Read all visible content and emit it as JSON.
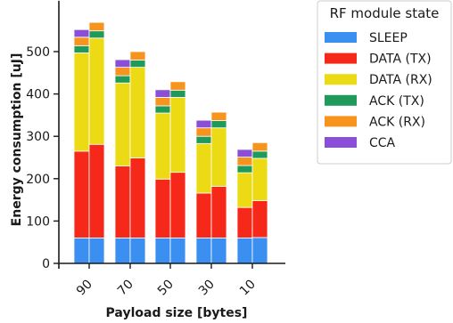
{
  "chart_data": {
    "type": "bar",
    "stacked": true,
    "grouping": "pairs of adjacent stacked bars per category",
    "xlabel": "Payload size [bytes]",
    "ylabel": "Energy consumption [uJ]",
    "ylim": [
      0,
      620
    ],
    "yticks": [
      0,
      100,
      200,
      300,
      400,
      500
    ],
    "categories": [
      "90",
      "70",
      "50",
      "30",
      "10"
    ],
    "legend": {
      "title": "RF module state",
      "placement": "upper-right, outside plot",
      "entries": [
        "SLEEP",
        "DATA (TX)",
        "DATA (RX)",
        "ACK (TX)",
        "ACK (RX)",
        "CCA"
      ]
    },
    "colors": {
      "SLEEP": "#3b8ff0",
      "DATA (TX)": "#f5281a",
      "DATA (RX)": "#ecdb14",
      "ACK (TX)": "#1f9a5a",
      "ACK (RX)": "#f7941d",
      "CCA": "#8a4fd6"
    },
    "series": [
      {
        "name": "SLEEP",
        "values": [
          [
            60,
            60
          ],
          [
            60,
            60
          ],
          [
            60,
            60
          ],
          [
            60,
            60
          ],
          [
            60,
            61
          ]
        ]
      },
      {
        "name": "DATA (TX)",
        "values": [
          [
            205,
            221
          ],
          [
            170,
            189
          ],
          [
            139,
            155
          ],
          [
            106,
            122
          ],
          [
            72,
            87
          ]
        ]
      },
      {
        "name": "DATA (RX)",
        "values": [
          [
            232,
            251
          ],
          [
            196,
            214
          ],
          [
            156,
            177
          ],
          [
            117,
            138
          ],
          [
            82,
            100
          ]
        ]
      },
      {
        "name": "ACK (TX)",
        "values": [
          [
            17,
            17
          ],
          [
            17,
            17
          ],
          [
            17,
            17
          ],
          [
            17,
            17
          ],
          [
            17,
            17
          ]
        ]
      },
      {
        "name": "ACK (RX)",
        "values": [
          [
            20,
            20
          ],
          [
            20,
            20
          ],
          [
            20,
            20
          ],
          [
            20,
            20
          ],
          [
            20,
            20
          ]
        ]
      },
      {
        "name": "CCA",
        "values": [
          [
            18,
            0
          ],
          [
            18,
            0
          ],
          [
            18,
            0
          ],
          [
            18,
            0
          ],
          [
            18,
            0
          ]
        ]
      }
    ]
  }
}
